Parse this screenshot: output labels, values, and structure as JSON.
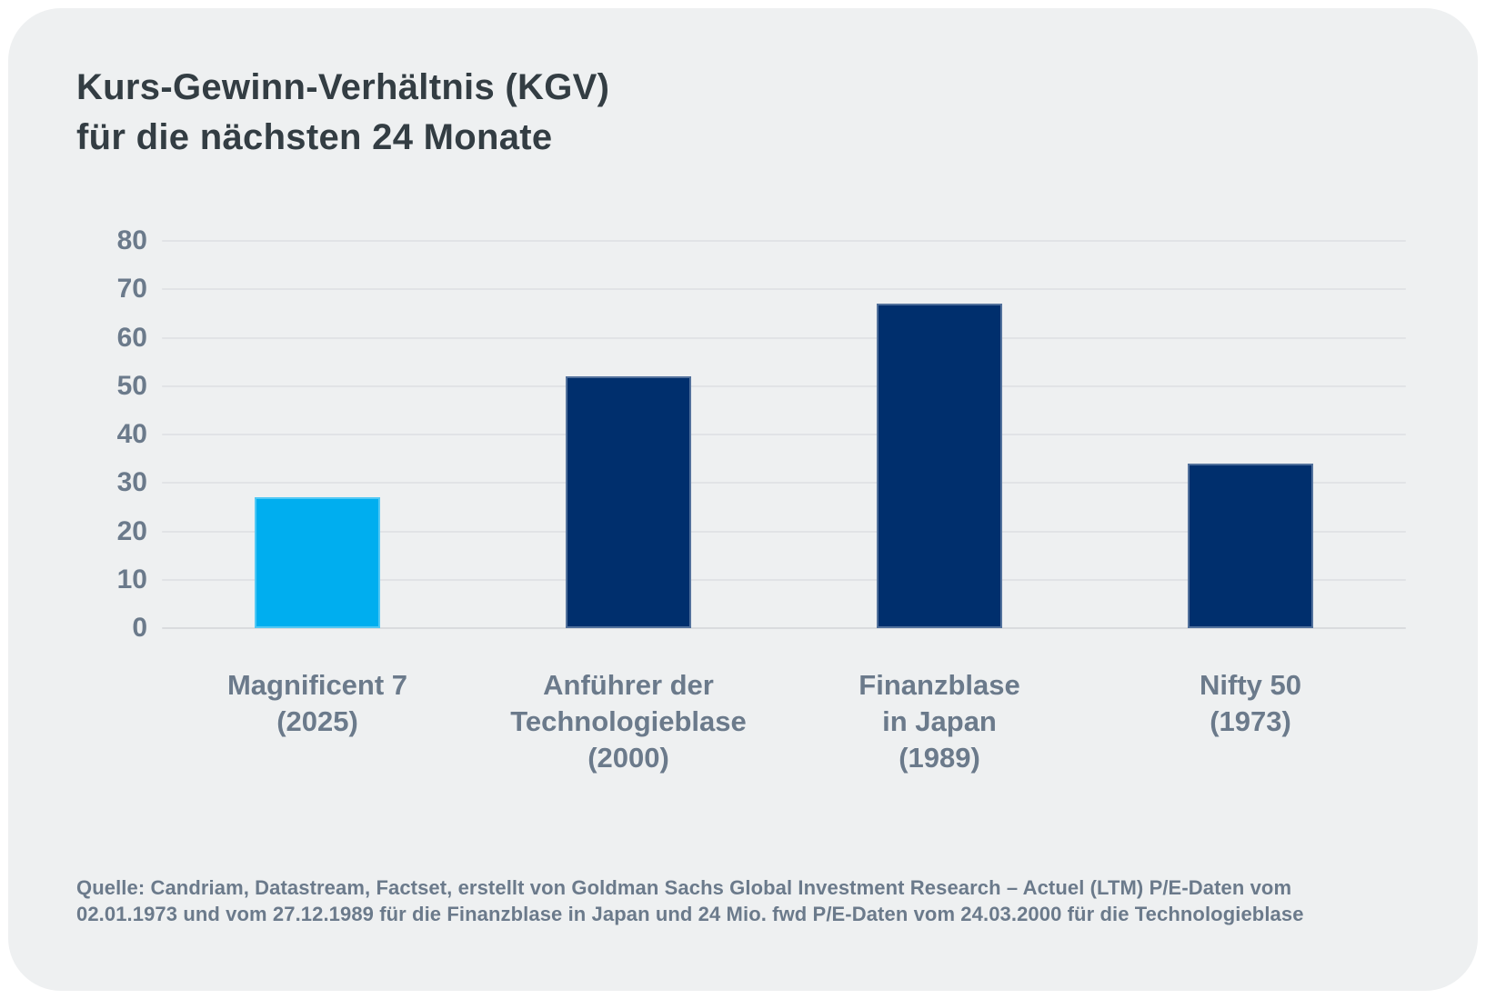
{
  "card": {
    "background_color": "#eef0f1",
    "page_background_color": "#ffffff"
  },
  "colors": {
    "title_text": "#333d43",
    "axis_text": "#6b7a8b",
    "gridline": "#e1e3e6",
    "highlight_bar": "#00aeef",
    "default_bar": "#002f6d"
  },
  "chart_data": {
    "type": "bar",
    "title": "Kurs-Gewinn-Verhältnis (KGV)\nfür die nächsten 24 Monate",
    "categories": [
      "Magnificent 7\n(2025)",
      "Anführer der\nTechnologieblase\n(2000)",
      "Finanzblase\nin Japan\n(1989)",
      "Nifty 50\n(1973)"
    ],
    "values": [
      27,
      52,
      67,
      34
    ],
    "bar_colors": [
      "#00aeef",
      "#002f6d",
      "#002f6d",
      "#002f6d"
    ],
    "xlabel": "",
    "ylabel": "",
    "ylim": [
      0,
      80
    ],
    "yticks": [
      0,
      10,
      20,
      30,
      40,
      50,
      60,
      70,
      80
    ],
    "grid": "horizontal",
    "legend_position": "none",
    "source": "Quelle: Candriam, Datastream, Factset, erstellt von Goldman Sachs Global Investment Research – Actuel (LTM) P/E-Daten vom\n02.01.1973 und vom 27.12.1989 für die Finanzblase in Japan und 24 Mio. fwd P/E-Daten vom 24.03.2000 für die Technologieblase"
  }
}
